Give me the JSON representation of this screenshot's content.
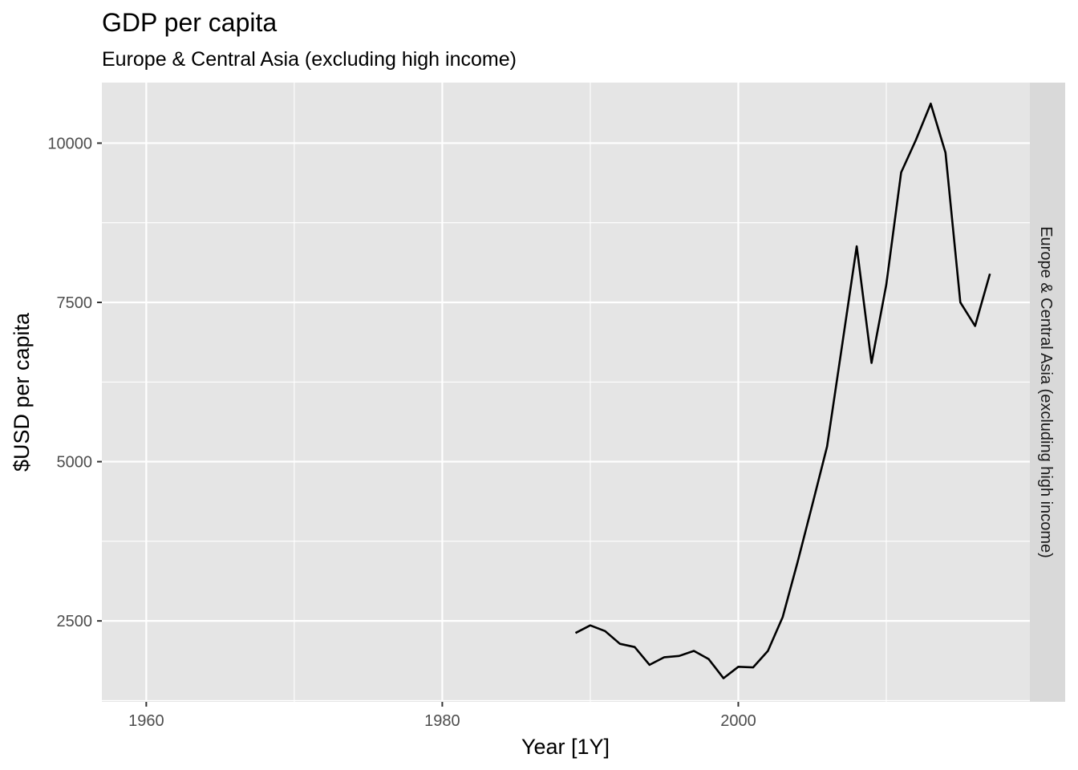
{
  "chart_data": {
    "type": "line",
    "title": "GDP per capita",
    "subtitle": "Europe & Central Asia (excluding high income)",
    "xlabel": "Year [1Y]",
    "ylabel": "$USD per capita",
    "facet_label": "Europe & Central Asia (excluding high income)",
    "xlim": [
      1957,
      2019.7
    ],
    "ylim": [
      1230,
      10950
    ],
    "x_ticks": [
      1960,
      1980,
      2000
    ],
    "x_tick_labels": [
      "1960",
      "1980",
      "2000"
    ],
    "y_ticks": [
      2500,
      5000,
      7500,
      10000
    ],
    "y_tick_labels": [
      "2500",
      "5000",
      "7500",
      "10000"
    ],
    "grid": true,
    "legend": "none",
    "line_color": "#000000",
    "panel_color": "#e5e5e5",
    "strip_color": "#d9d9d9",
    "series": [
      {
        "x": [
          1989,
          1990,
          1991,
          1992,
          1993,
          1994,
          1995,
          1996,
          1997,
          1998,
          1999,
          2000,
          2001,
          2002,
          2003,
          2004,
          2005,
          2006,
          2007,
          2008,
          2009,
          2010,
          2011,
          2012,
          2013,
          2014,
          2015,
          2016,
          2017
        ],
        "values": [
          2310,
          2430,
          2340,
          2140,
          2090,
          1810,
          1930,
          1950,
          2030,
          1900,
          1600,
          1780,
          1770,
          2030,
          2560,
          3420,
          4320,
          5240,
          6800,
          8380,
          6550,
          7780,
          9540,
          10050,
          10620,
          9850,
          7500,
          7130,
          7950
        ]
      }
    ]
  }
}
